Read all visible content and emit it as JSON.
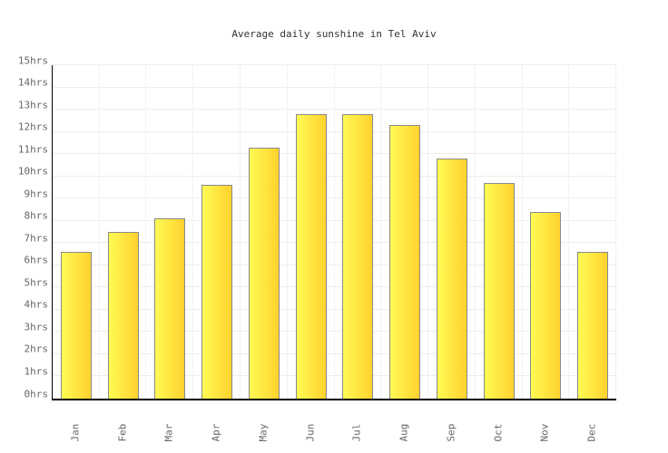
{
  "chart_data": {
    "type": "bar",
    "title": "Average daily sunshine in Tel Aviv",
    "categories": [
      "Jan",
      "Feb",
      "Mar",
      "Apr",
      "May",
      "Jun",
      "Jul",
      "Aug",
      "Sep",
      "Oct",
      "Nov",
      "Dec"
    ],
    "values": [
      6.6,
      7.5,
      8.1,
      9.6,
      11.3,
      12.8,
      12.8,
      12.3,
      10.8,
      9.7,
      8.4,
      6.6
    ],
    "unit": "hrs",
    "ylabel": "",
    "xlabel": "",
    "ylim": [
      0,
      15
    ],
    "ytick_step": 1,
    "ytick_labels": [
      "0hrs",
      "1hrs",
      "2hrs",
      "3hrs",
      "4hrs",
      "5hrs",
      "6hrs",
      "7hrs",
      "8hrs",
      "9hrs",
      "10hrs",
      "11hrs",
      "12hrs",
      "13hrs",
      "14hrs",
      "15hrs"
    ],
    "grid": "on",
    "legend": "none",
    "colors": {
      "bar_gradient_left": "#fffa55",
      "bar_gradient_right": "#ffd22e",
      "bar_border": "#8a8a8a",
      "gridline_horizontal": "#ededed",
      "gridline_vertical": "#f2f2f2",
      "axis": "#000000",
      "tick_label": "#666666",
      "title": "#333333",
      "background": "#ffffff"
    }
  }
}
